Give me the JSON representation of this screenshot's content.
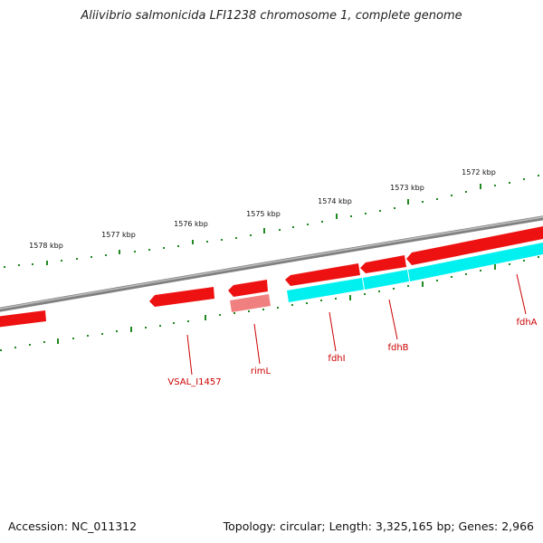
{
  "title": "Aliivibrio salmonicida LFI1238 chromosome 1, complete genome",
  "footer": {
    "accession": "Accession: NC_011312",
    "summary": "Topology: circular; Length: 3,325,165 bp; Genes: 2,966"
  },
  "colors": {
    "backbone": "#8a8a8a",
    "forward_gene": "#ee1111",
    "reverse_gene": "#00f0f0",
    "pale_gene": "#f08080",
    "tick": "#228822",
    "label": "#cc0000"
  },
  "ticks": {
    "labels": [
      "1578 kbp",
      "1577 kbp",
      "1576 kbp",
      "1575 kbp",
      "1574 kbp",
      "1573 kbp",
      "1572 kbp"
    ]
  },
  "genes": {
    "labels": [
      "VSAL_I1457",
      "rimL",
      "fdhI",
      "fdhB",
      "fdhA"
    ]
  }
}
